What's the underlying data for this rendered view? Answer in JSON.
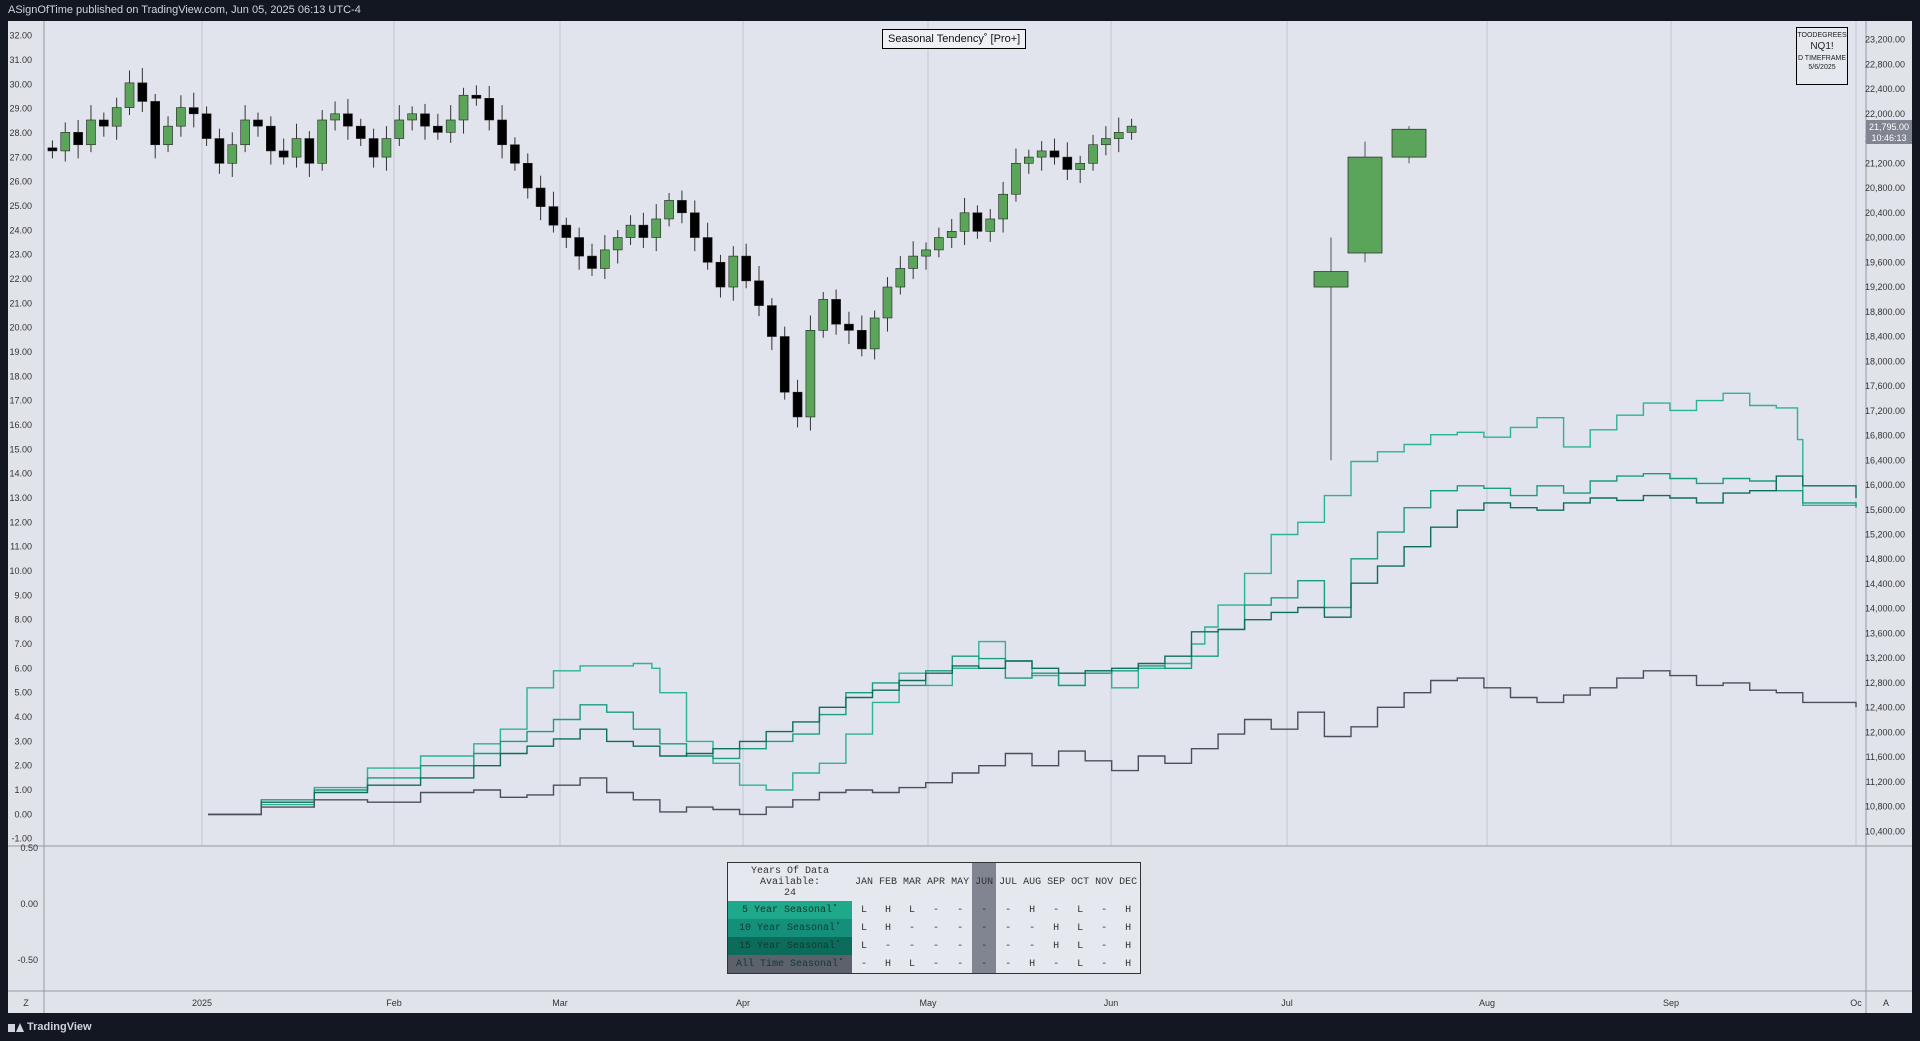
{
  "header": {
    "published_text": "ASignOfTime published on TradingView.com, Jun 05, 2025 06:13 UTC-4"
  },
  "footer": {
    "brand": "TradingView",
    "left_btn": "Z",
    "right_btn": "A"
  },
  "indicator": {
    "title": "Seasonal Tendency˚ [Pro+]"
  },
  "info_box": {
    "line1": "TOODEGREES",
    "symbol": "NQ1!",
    "line3": "D TIMEFRAME",
    "date": "5/6/2025"
  },
  "price_labels": {
    "last_price": "21,795.00",
    "countdown": "10:46:13"
  },
  "table": {
    "years_header": "Years Of Data Available:",
    "years_value": "24",
    "months": [
      "JAN",
      "FEB",
      "MAR",
      "APR",
      "MAY",
      "JUN",
      "JUL",
      "AUG",
      "SEP",
      "OCT",
      "NOV",
      "DEC"
    ],
    "rows": [
      {
        "label": "5 Year Seasonal˚",
        "color": "#1fa88a",
        "values": [
          "L",
          "H",
          "L",
          "-",
          "-",
          "-",
          "-",
          "H",
          "-",
          "L",
          "-",
          "H"
        ]
      },
      {
        "label": "10 Year Seasonal˚",
        "color": "#14907a",
        "values": [
          "L",
          "H",
          "-",
          "-",
          "-",
          "-",
          "-",
          "-",
          "H",
          "L",
          "-",
          "H"
        ]
      },
      {
        "label": "15 Year Seasonal˚",
        "color": "#0c6b5a",
        "values": [
          "L",
          "-",
          "-",
          "-",
          "-",
          "-",
          "-",
          "-",
          "H",
          "L",
          "-",
          "H"
        ]
      },
      {
        "label": "All Time Seasonal˚",
        "color": "#5d616c",
        "values": [
          "-",
          "H",
          "L",
          "-",
          "-",
          "-",
          "-",
          "H",
          "-",
          "L",
          "-",
          "H"
        ]
      }
    ]
  },
  "chart_data": {
    "type": "line",
    "x_axis": {
      "labels": [
        "2025",
        "Feb",
        "Mar",
        "Apr",
        "May",
        "Jun",
        "Jul",
        "Aug",
        "Sep",
        "Oc"
      ]
    },
    "left_axis": {
      "label": "",
      "ticks": [
        "32.00",
        "31.00",
        "30.00",
        "29.00",
        "28.00",
        "27.00",
        "26.00",
        "25.00",
        "24.00",
        "23.00",
        "22.00",
        "21.00",
        "20.00",
        "19.00",
        "18.00",
        "17.00",
        "16.00",
        "15.00",
        "14.00",
        "13.00",
        "12.00",
        "11.00",
        "10.00",
        "9.00",
        "8.00",
        "7.00",
        "6.00",
        "5.00",
        "4.00",
        "3.00",
        "2.00",
        "1.00",
        "0.00",
        "-1.00"
      ],
      "range": [
        -1.3,
        32.6
      ]
    },
    "right_axis": {
      "label": "",
      "ticks": [
        "23,200.00",
        "22,800.00",
        "22,400.00",
        "22,000.00",
        "21,600.00",
        "21,200.00",
        "20,800.00",
        "20,400.00",
        "20,000.00",
        "19,600.00",
        "19,200.00",
        "18,800.00",
        "18,400.00",
        "18,000.00",
        "17,600.00",
        "17,200.00",
        "16,800.00",
        "16,400.00",
        "16,000.00",
        "15,600.00",
        "15,200.00",
        "14,800.00",
        "14,400.00",
        "14,000.00",
        "13,600.00",
        "13,200.00",
        "12,800.00",
        "12,400.00",
        "12,000.00",
        "11,600.00",
        "11,200.00",
        "10,800.00",
        "10,400.00"
      ],
      "range": [
        10165,
        23500
      ]
    },
    "sub_axis": {
      "ticks": [
        "0.50",
        "0.00",
        "-0.50"
      ],
      "range": [
        -0.78,
        0.52
      ]
    },
    "candles": {
      "bull_color": "#5ba55a",
      "bear_color": "#000000",
      "last_price": 21795
    },
    "series": [
      {
        "name": "5 Year Seasonal˚",
        "color": "#2bb394",
        "points": [
          [
            0,
            0.0
          ],
          [
            2,
            0.4
          ],
          [
            4,
            1.1
          ],
          [
            6,
            1.9
          ],
          [
            8,
            2.4
          ],
          [
            10,
            2.9
          ],
          [
            11,
            3.5
          ],
          [
            12,
            5.2
          ],
          [
            13,
            5.9
          ],
          [
            14,
            6.1
          ],
          [
            16,
            6.2
          ],
          [
            16.7,
            6.0
          ],
          [
            17,
            5.0
          ],
          [
            18,
            3.0
          ],
          [
            19,
            2.1
          ],
          [
            20,
            1.2
          ],
          [
            21,
            1.0
          ],
          [
            22,
            1.7
          ],
          [
            23,
            2.1
          ],
          [
            24,
            3.3
          ],
          [
            25,
            4.6
          ],
          [
            26,
            5.8
          ],
          [
            27,
            5.3
          ],
          [
            28,
            6.0
          ],
          [
            29,
            7.1
          ],
          [
            30,
            6.3
          ],
          [
            31,
            5.7
          ],
          [
            32,
            5.3
          ],
          [
            33,
            5.9
          ],
          [
            34,
            5.2
          ],
          [
            35,
            6.0
          ],
          [
            36,
            6.2
          ],
          [
            37,
            7.0
          ],
          [
            37.5,
            7.7
          ],
          [
            38,
            8.6
          ],
          [
            39,
            9.9
          ],
          [
            40,
            11.5
          ],
          [
            41,
            12.0
          ],
          [
            42,
            13.1
          ],
          [
            43,
            14.5
          ],
          [
            44,
            14.9
          ],
          [
            45,
            15.2
          ],
          [
            46,
            15.6
          ],
          [
            47,
            15.7
          ],
          [
            48,
            15.5
          ],
          [
            49,
            15.9
          ],
          [
            50,
            16.3
          ],
          [
            51,
            15.1
          ],
          [
            52,
            15.8
          ],
          [
            53,
            16.4
          ],
          [
            54,
            16.9
          ],
          [
            55,
            16.6
          ],
          [
            56,
            17.0
          ],
          [
            57,
            17.3
          ],
          [
            58,
            16.8
          ],
          [
            59,
            16.7
          ],
          [
            59.8,
            15.4
          ],
          [
            60,
            12.7
          ],
          [
            62,
            12.8
          ]
        ]
      },
      {
        "name": "10 Year Seasonal˚",
        "color": "#1a9c80",
        "points": [
          [
            0,
            0.0
          ],
          [
            2,
            0.6
          ],
          [
            4,
            1.0
          ],
          [
            6,
            1.5
          ],
          [
            8,
            2.0
          ],
          [
            10,
            2.5
          ],
          [
            11,
            3.0
          ],
          [
            12,
            3.4
          ],
          [
            13,
            3.9
          ],
          [
            14,
            4.5
          ],
          [
            15,
            4.2
          ],
          [
            16,
            3.5
          ],
          [
            17,
            2.9
          ],
          [
            18,
            2.4
          ],
          [
            19,
            2.3
          ],
          [
            20,
            2.7
          ],
          [
            21,
            3.0
          ],
          [
            22,
            3.3
          ],
          [
            23,
            4.1
          ],
          [
            24,
            5.0
          ],
          [
            25,
            5.4
          ],
          [
            26,
            5.3
          ],
          [
            27,
            5.9
          ],
          [
            28,
            6.5
          ],
          [
            29,
            6.4
          ],
          [
            30,
            5.6
          ],
          [
            31,
            5.8
          ],
          [
            32,
            5.3
          ],
          [
            33,
            5.8
          ],
          [
            34,
            5.9
          ],
          [
            35,
            6.1
          ],
          [
            36,
            6.0
          ],
          [
            37,
            6.5
          ],
          [
            38,
            7.6
          ],
          [
            39,
            8.6
          ],
          [
            40,
            8.9
          ],
          [
            41,
            9.6
          ],
          [
            42,
            8.5
          ],
          [
            43,
            10.5
          ],
          [
            44,
            11.6
          ],
          [
            45,
            12.6
          ],
          [
            46,
            13.3
          ],
          [
            47,
            13.5
          ],
          [
            48,
            13.4
          ],
          [
            49,
            13.1
          ],
          [
            50,
            13.5
          ],
          [
            51,
            13.2
          ],
          [
            52,
            13.7
          ],
          [
            53,
            13.9
          ],
          [
            54,
            14.0
          ],
          [
            55,
            13.8
          ],
          [
            56,
            13.6
          ],
          [
            57,
            13.8
          ],
          [
            58,
            13.7
          ],
          [
            59,
            13.3
          ],
          [
            60,
            12.8
          ],
          [
            62,
            12.6
          ]
        ]
      },
      {
        "name": "15 Year Seasonal˚",
        "color": "#0e6e5c",
        "points": [
          [
            0,
            0.0
          ],
          [
            2,
            0.5
          ],
          [
            4,
            0.9
          ],
          [
            6,
            1.2
          ],
          [
            8,
            1.5
          ],
          [
            10,
            2.0
          ],
          [
            11,
            2.5
          ],
          [
            12,
            2.8
          ],
          [
            13,
            3.1
          ],
          [
            14,
            3.5
          ],
          [
            15,
            3.0
          ],
          [
            16,
            2.8
          ],
          [
            17,
            2.4
          ],
          [
            18,
            2.5
          ],
          [
            19,
            2.7
          ],
          [
            20,
            3.0
          ],
          [
            21,
            3.4
          ],
          [
            22,
            3.8
          ],
          [
            23,
            4.4
          ],
          [
            24,
            4.8
          ],
          [
            25,
            5.1
          ],
          [
            26,
            5.5
          ],
          [
            27,
            5.8
          ],
          [
            28,
            6.1
          ],
          [
            29,
            6.0
          ],
          [
            30,
            6.3
          ],
          [
            31,
            6.0
          ],
          [
            32,
            5.8
          ],
          [
            33,
            5.9
          ],
          [
            34,
            6.0
          ],
          [
            35,
            6.2
          ],
          [
            36,
            6.5
          ],
          [
            37,
            7.5
          ],
          [
            38,
            7.6
          ],
          [
            39,
            8.0
          ],
          [
            40,
            8.3
          ],
          [
            41,
            8.5
          ],
          [
            42,
            8.1
          ],
          [
            43,
            9.5
          ],
          [
            44,
            10.2
          ],
          [
            45,
            11.0
          ],
          [
            46,
            11.8
          ],
          [
            47,
            12.5
          ],
          [
            48,
            12.8
          ],
          [
            49,
            12.6
          ],
          [
            50,
            12.5
          ],
          [
            51,
            12.8
          ],
          [
            52,
            13.0
          ],
          [
            53,
            12.9
          ],
          [
            54,
            13.1
          ],
          [
            55,
            13.0
          ],
          [
            56,
            12.8
          ],
          [
            57,
            13.2
          ],
          [
            58,
            13.3
          ],
          [
            59,
            13.9
          ],
          [
            60,
            13.5
          ],
          [
            62,
            13.0
          ]
        ]
      },
      {
        "name": "All Time Seasonal˚",
        "color": "#4b4f59",
        "points": [
          [
            0,
            0.0
          ],
          [
            2,
            0.3
          ],
          [
            4,
            0.6
          ],
          [
            6,
            0.5
          ],
          [
            8,
            0.9
          ],
          [
            10,
            1.0
          ],
          [
            11,
            0.7
          ],
          [
            12,
            0.8
          ],
          [
            13,
            1.2
          ],
          [
            14,
            1.5
          ],
          [
            15,
            0.9
          ],
          [
            16,
            0.6
          ],
          [
            17,
            0.1
          ],
          [
            18,
            0.3
          ],
          [
            19,
            0.2
          ],
          [
            20,
            0.0
          ],
          [
            21,
            0.3
          ],
          [
            22,
            0.6
          ],
          [
            23,
            0.9
          ],
          [
            24,
            1.0
          ],
          [
            25,
            0.9
          ],
          [
            26,
            1.1
          ],
          [
            27,
            1.3
          ],
          [
            28,
            1.7
          ],
          [
            29,
            2.0
          ],
          [
            30,
            2.5
          ],
          [
            31,
            2.0
          ],
          [
            32,
            2.6
          ],
          [
            33,
            2.2
          ],
          [
            34,
            1.8
          ],
          [
            35,
            2.4
          ],
          [
            36,
            2.1
          ],
          [
            37,
            2.7
          ],
          [
            38,
            3.3
          ],
          [
            39,
            3.9
          ],
          [
            40,
            3.5
          ],
          [
            41,
            4.2
          ],
          [
            42,
            3.2
          ],
          [
            43,
            3.6
          ],
          [
            44,
            4.4
          ],
          [
            45,
            5.0
          ],
          [
            46,
            5.5
          ],
          [
            47,
            5.6
          ],
          [
            48,
            5.2
          ],
          [
            49,
            4.8
          ],
          [
            50,
            4.6
          ],
          [
            51,
            4.9
          ],
          [
            52,
            5.2
          ],
          [
            53,
            5.6
          ],
          [
            54,
            5.9
          ],
          [
            55,
            5.7
          ],
          [
            56,
            5.3
          ],
          [
            57,
            5.4
          ],
          [
            58,
            5.1
          ],
          [
            59,
            5.0
          ],
          [
            60,
            4.6
          ],
          [
            62,
            4.4
          ]
        ]
      }
    ]
  }
}
